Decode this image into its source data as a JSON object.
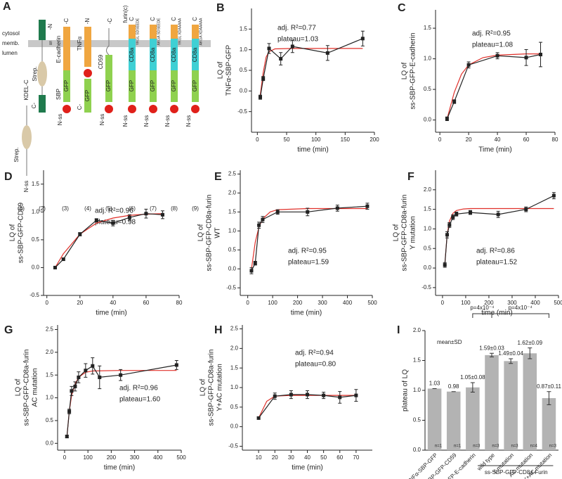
{
  "schematic": {
    "panel_label": "A",
    "regions": [
      "cytosol",
      "memb.",
      "lumen"
    ],
    "constructs": [
      {
        "number": "(1)",
        "labels": [
          "Strep.",
          "KDEL-C",
          "N-ss"
        ]
      },
      {
        "number": "(2)",
        "labels": [
          "-N",
          "Strep.",
          "Ii",
          "C-"
        ]
      },
      {
        "number": "(3)",
        "labels": [
          "-C",
          "E-cadherin",
          "GFP",
          "SBP",
          "N-ss"
        ]
      },
      {
        "number": "(4)",
        "labels": [
          "-N",
          "TNFα",
          "C-",
          "GFP"
        ]
      },
      {
        "number": "(5)",
        "labels": [
          "-C",
          "CD59",
          "GFP",
          "N-ss"
        ]
      },
      {
        "number": "(6)",
        "labels": [
          "C",
          "furin(c)",
          "YKGL SDSEEDE",
          "CD8a",
          "GFP",
          "N-ss"
        ]
      },
      {
        "number": "(7)",
        "labels": [
          "C",
          "AKGA SDSEEDE",
          "CD8a",
          "GFP",
          "N-ss"
        ]
      },
      {
        "number": "(8)",
        "labels": [
          "C",
          "YKGL XDAAAAA",
          "CD8a",
          "GFP",
          "N-ss"
        ]
      },
      {
        "number": "(9)",
        "labels": [
          "C",
          "AKGA XDAAAAA",
          "CD8a",
          "GFP",
          "N-ss"
        ]
      }
    ]
  },
  "chart_data": [
    {
      "type": "line",
      "label": "B",
      "xlabel": "time (min)",
      "ylabel": [
        "LQ of",
        "TNFα-SBP-GFP"
      ],
      "annotations": [
        "adj. R²=0.77",
        "plateau=1.03"
      ],
      "xlim": [
        -10,
        200
      ],
      "xticks": [
        0,
        50,
        100,
        150,
        200
      ],
      "ylim": [
        -1,
        2
      ],
      "yticks": [
        {
          "value": -0.5,
          "label": "-0.5"
        },
        {
          "value": 0,
          "label": "0.0"
        },
        {
          "value": 0.5,
          "label": "0.5"
        },
        {
          "value": 1,
          "label": "1.0"
        },
        {
          "value": 1.5,
          "label": "1.5"
        }
      ],
      "series": [
        {
          "color": "#222222",
          "x": [
            5,
            10,
            20,
            40,
            60,
            120,
            180
          ],
          "values": [
            -0.15,
            0.3,
            1.03,
            0.78,
            1.08,
            0.92,
            1.27
          ],
          "error": [
            0.05,
            0.05,
            0.12,
            0.15,
            0.15,
            0.18,
            0.18
          ]
        },
        {
          "color": "#e0302a",
          "x": [
            5,
            10,
            15,
            20,
            30,
            60,
            120,
            180
          ],
          "values": [
            -0.1,
            0.45,
            0.82,
            0.95,
            1.02,
            1.03,
            1.03,
            1.03
          ]
        }
      ]
    },
    {
      "type": "line",
      "label": "C",
      "xlabel": "Time (min)",
      "ylabel": [
        "LQ of",
        "ss-SBP-GFP-E-cadherin"
      ],
      "annotations": [
        "adj. R²=0.95",
        "plateau=1.08"
      ],
      "xlim": [
        -3,
        80
      ],
      "xticks": [
        0,
        20,
        40,
        60,
        80
      ],
      "ylim": [
        -0.2,
        1.8
      ],
      "yticks": [
        {
          "value": 0,
          "label": "0.0"
        },
        {
          "value": 0.5,
          "label": "0.5"
        },
        {
          "value": 1,
          "label": "1.0"
        },
        {
          "value": 1.5,
          "label": "1.5"
        }
      ],
      "series": [
        {
          "color": "#222222",
          "x": [
            5,
            10,
            20,
            40,
            60,
            70
          ],
          "values": [
            0.02,
            0.3,
            0.9,
            1.05,
            1.02,
            1.07
          ],
          "error": [
            0.03,
            0.03,
            0.05,
            0.05,
            0.13,
            0.2
          ]
        },
        {
          "color": "#e0302a",
          "x": [
            5,
            10,
            15,
            20,
            30,
            40,
            60,
            70
          ],
          "values": [
            0.02,
            0.45,
            0.75,
            0.9,
            1.02,
            1.06,
            1.08,
            1.08
          ]
        }
      ]
    },
    {
      "type": "line",
      "label": "D",
      "xlabel": "time (min)",
      "ylabel": [
        "LQ of",
        "ss-SBP-GFP-CD59"
      ],
      "annotations": [
        "adj. R²=0.96",
        "plateau=0.98"
      ],
      "xlim": [
        -2,
        80
      ],
      "xticks": [
        0,
        20,
        40,
        60,
        80
      ],
      "ylim": [
        -0.5,
        1.75
      ],
      "yticks": [
        {
          "value": -0.5,
          "label": "-0.5"
        },
        {
          "value": 0,
          "label": "0.0"
        },
        {
          "value": 0.5,
          "label": "0.5"
        },
        {
          "value": 1,
          "label": "1.0"
        },
        {
          "value": 1.5,
          "label": "1.5"
        }
      ],
      "series": [
        {
          "color": "#222222",
          "x": [
            5,
            10,
            20,
            30,
            40,
            50,
            60,
            70
          ],
          "values": [
            0,
            0.15,
            0.6,
            0.85,
            0.8,
            0.9,
            0.97,
            0.95
          ],
          "error": [
            0.02,
            0.02,
            0.03,
            0.03,
            0.05,
            0.05,
            0.08,
            0.07
          ]
        },
        {
          "color": "#e0302a",
          "x": [
            5,
            10,
            20,
            30,
            40,
            50,
            60,
            70
          ],
          "values": [
            0,
            0.25,
            0.6,
            0.8,
            0.89,
            0.94,
            0.96,
            0.97
          ]
        }
      ]
    },
    {
      "type": "line",
      "label": "E",
      "xlabel": "time (min)",
      "ylabel": [
        "LQ of",
        "ss-SBP-GFP-CD8a-furin",
        "WT"
      ],
      "annotations": [
        "adj. R²=0.95",
        "plateau=1.59"
      ],
      "xlim": [
        -30,
        500
      ],
      "xticks": [
        0,
        100,
        200,
        300,
        400,
        500
      ],
      "ylim": [
        -0.7,
        2.6
      ],
      "yticks": [
        {
          "value": -0.5,
          "label": "-0.5"
        },
        {
          "value": 0,
          "label": "0.0"
        },
        {
          "value": 0.5,
          "label": "0.5"
        },
        {
          "value": 1,
          "label": "1.0"
        },
        {
          "value": 1.5,
          "label": "1.5"
        },
        {
          "value": 2,
          "label": "2.0"
        },
        {
          "value": 2.5,
          "label": "2.5"
        }
      ],
      "series": [
        {
          "color": "#222222",
          "x": [
            15,
            30,
            45,
            60,
            120,
            240,
            360,
            480
          ],
          "values": [
            -0.05,
            0.15,
            1.15,
            1.3,
            1.5,
            1.5,
            1.6,
            1.65
          ],
          "error": [
            0.08,
            0.05,
            0.08,
            0.08,
            0.06,
            0.1,
            0.08,
            0.08
          ]
        },
        {
          "color": "#e0302a",
          "x": [
            15,
            30,
            45,
            60,
            90,
            120,
            240,
            360,
            480
          ],
          "values": [
            0,
            0.7,
            1.1,
            1.32,
            1.5,
            1.56,
            1.59,
            1.59,
            1.59
          ]
        }
      ]
    },
    {
      "type": "line",
      "label": "F",
      "xlabel": "time (min)",
      "ylabel": [
        "LQ of",
        "ss-SBP-GFP-CD8a-furin",
        "Y mutation"
      ],
      "annotations": [
        "adj. R²=0.86",
        "plateau=1.52"
      ],
      "xlim": [
        -30,
        500
      ],
      "xticks": [
        0,
        100,
        200,
        300,
        400,
        500
      ],
      "ylim": [
        -0.7,
        2.5
      ],
      "yticks": [
        {
          "value": -0.5,
          "label": "-0.5"
        },
        {
          "value": 0,
          "label": "0.0"
        },
        {
          "value": 0.5,
          "label": "0.5"
        },
        {
          "value": 1,
          "label": "1.0"
        },
        {
          "value": 1.5,
          "label": "1.5"
        },
        {
          "value": 2,
          "label": "2.0"
        }
      ],
      "series": [
        {
          "color": "#222222",
          "x": [
            10,
            20,
            30,
            45,
            60,
            120,
            240,
            360,
            480
          ],
          "values": [
            0.08,
            0.85,
            1.1,
            1.3,
            1.38,
            1.42,
            1.37,
            1.5,
            1.85
          ],
          "error": [
            0.06,
            0.08,
            0.06,
            0.06,
            0.05,
            0.05,
            0.08,
            0.06,
            0.08
          ]
        },
        {
          "color": "#e0302a",
          "x": [
            10,
            20,
            30,
            45,
            60,
            90,
            120,
            240,
            360,
            480
          ],
          "values": [
            0.1,
            0.85,
            1.2,
            1.4,
            1.47,
            1.51,
            1.52,
            1.52,
            1.52,
            1.52
          ]
        }
      ]
    },
    {
      "type": "line",
      "label": "G",
      "xlabel": "time (min)",
      "ylabel": [
        "LQ of",
        "ss-SBP-GFP-CD8a-furin",
        "AC mutation"
      ],
      "annotations": [
        "adj. R²=0.96",
        "plateau=1.60"
      ],
      "xlim": [
        -30,
        500
      ],
      "xticks": [
        0,
        100,
        200,
        300,
        400,
        500
      ],
      "ylim": [
        -0.15,
        2.6
      ],
      "yticks": [
        {
          "value": 0,
          "label": "0.0"
        },
        {
          "value": 0.5,
          "label": "0.5"
        },
        {
          "value": 1,
          "label": "1.0"
        },
        {
          "value": 1.5,
          "label": "1.5"
        },
        {
          "value": 2,
          "label": "2.0"
        },
        {
          "value": 2.5,
          "label": "2.5"
        }
      ],
      "series": [
        {
          "color": "#222222",
          "x": [
            10,
            20,
            30,
            45,
            60,
            90,
            120,
            150,
            240,
            480
          ],
          "values": [
            0.15,
            0.7,
            1.15,
            1.25,
            1.45,
            1.6,
            1.7,
            1.45,
            1.5,
            1.72
          ],
          "error": [
            0.03,
            0.05,
            0.1,
            0.1,
            0.12,
            0.15,
            0.18,
            0.25,
            0.12,
            0.1
          ]
        },
        {
          "color": "#e0302a",
          "x": [
            10,
            20,
            30,
            45,
            60,
            90,
            120,
            240,
            480
          ],
          "values": [
            0.15,
            0.7,
            1.05,
            1.3,
            1.45,
            1.56,
            1.59,
            1.6,
            1.6
          ]
        }
      ]
    },
    {
      "type": "line",
      "label": "H",
      "xlabel": "time (min)",
      "ylabel": [
        "LQ of",
        "ss-SBP-GFP-CD8a-furin",
        "Y+AC mutation"
      ],
      "annotations": [
        "adj. R²=0.94",
        "plateau=0.80"
      ],
      "xlim": [
        0,
        80
      ],
      "xticks": [
        10,
        20,
        30,
        40,
        50,
        60,
        70
      ],
      "ylim": [
        -0.6,
        2.6
      ],
      "yticks": [
        {
          "value": -0.5,
          "label": "-0.5"
        },
        {
          "value": 0,
          "label": "0.0"
        },
        {
          "value": 0.5,
          "label": "0.5"
        },
        {
          "value": 1,
          "label": "1.0"
        },
        {
          "value": 1.5,
          "label": "1.5"
        },
        {
          "value": 2,
          "label": "2.0"
        },
        {
          "value": 2.5,
          "label": "2.5"
        }
      ],
      "series": [
        {
          "color": "#222222",
          "x": [
            10,
            20,
            30,
            40,
            50,
            60,
            70
          ],
          "values": [
            0.22,
            0.78,
            0.82,
            0.82,
            0.8,
            0.75,
            0.8
          ],
          "error": [
            0.03,
            0.08,
            0.1,
            0.1,
            0.08,
            0.15,
            0.15
          ]
        },
        {
          "color": "#e0302a",
          "x": [
            10,
            15,
            20,
            30,
            40,
            50,
            60,
            70
          ],
          "values": [
            0.22,
            0.65,
            0.78,
            0.8,
            0.8,
            0.8,
            0.8,
            0.8
          ]
        }
      ]
    },
    {
      "type": "bar",
      "label": "I",
      "ylabel": "plateau of LQ",
      "color": "#b3b3b3",
      "annotations": [
        "mean±SD"
      ],
      "comparisons": [
        "p=4x10⁻⁴",
        "p=4x10⁻⁴"
      ],
      "group_label": "ss-SBP-GFP-CD8a-Furin",
      "categories": [
        "TNFα-SBP-GFP",
        "SBP-GFP-CD59",
        "ss-SBP-GFP-E-cadherin",
        "wild type",
        "Y mutation",
        "AC mutation",
        "Y+AC mutation"
      ],
      "values": [
        1.03,
        0.98,
        1.05,
        1.59,
        1.49,
        1.62,
        0.87
      ],
      "error": [
        0,
        0,
        0.08,
        0.03,
        0.04,
        0.09,
        0.11
      ],
      "value_labels": [
        "1.03",
        "0.98",
        "1.05±0.08",
        "1.59±0.03",
        "1.49±0.04",
        "1.62±0.09",
        "0.87±0.11"
      ],
      "n_labels": [
        "n=1",
        "n=1",
        "n=3",
        "n=3",
        "n=3",
        "n=4",
        "n=3"
      ],
      "ylim": [
        0,
        2
      ],
      "yticks": [
        {
          "value": 0,
          "label": "0.0"
        },
        {
          "value": 0.5,
          "label": "0.5"
        },
        {
          "value": 1,
          "label": "1.0"
        },
        {
          "value": 1.5,
          "label": "1.5"
        },
        {
          "value": 2,
          "label": "2.0"
        }
      ]
    }
  ]
}
